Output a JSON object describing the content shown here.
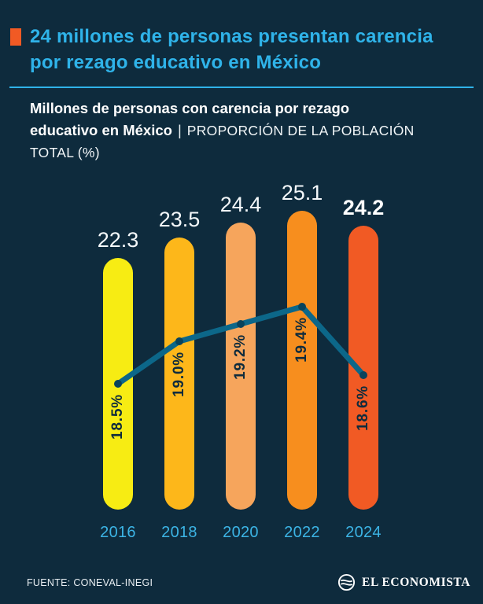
{
  "colors": {
    "background": "#0E2B3D",
    "accent_cyan": "#2FB3E9",
    "bullet_orange": "#F15A24"
  },
  "header": {
    "title": "24 millones de personas presentan carencia por rezago educativo en México"
  },
  "subtitle": {
    "bold": "Millones de personas con carencia por rezago educativo en México",
    "separator": "|",
    "regular": "PROPORCIÓN DE LA POBLACIÓN TOTAL (%)"
  },
  "chart_data": {
    "type": "bar",
    "title": "Millones de personas con carencia por rezago educativo en México / Proporción de la población total (%)",
    "categories": [
      "2016",
      "2018",
      "2020",
      "2022",
      "2024"
    ],
    "series": [
      {
        "name": "Millones de personas",
        "values": [
          22.3,
          23.5,
          24.4,
          25.1,
          24.2
        ]
      },
      {
        "name": "Proporción de la población total (%)",
        "values": [
          18.5,
          19.0,
          19.2,
          19.4,
          18.6
        ]
      }
    ],
    "value_labels": [
      "22.3",
      "23.5",
      "24.4",
      "25.1",
      "24.2"
    ],
    "pct_labels": [
      "18.5%",
      "19.0%",
      "19.2%",
      "19.4%",
      "18.6%"
    ],
    "bar_colors": [
      "#F7EC13",
      "#FDB71A",
      "#F6A55C",
      "#F78E1E",
      "#F15A24"
    ],
    "line_color": "#0C6789",
    "line_point_color": "#09435C",
    "highlight_last": true,
    "legend_position": "none",
    "grid": false,
    "xlabel": "",
    "ylabel": ""
  },
  "footer": {
    "source": "FUENTE: CONEVAL-INEGI",
    "brand": "EL ECONOMISTA"
  }
}
